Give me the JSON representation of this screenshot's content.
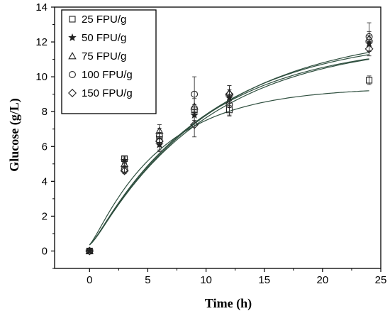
{
  "chart_data": {
    "type": "scatter",
    "title": "",
    "xlabel": "Time (h)",
    "ylabel": "Glucose (g/L)",
    "xlim": [
      -3,
      25
    ],
    "ylim": [
      -1,
      14
    ],
    "x_ticks": [
      0,
      5,
      10,
      15,
      20,
      25
    ],
    "y_ticks": [
      0,
      2,
      4,
      6,
      8,
      10,
      12,
      14
    ],
    "grid": false,
    "legend_position": "top-left",
    "fit_curves": true,
    "x": [
      0,
      3,
      6,
      9,
      12,
      24
    ],
    "series": [
      {
        "name": "25 FPU/g",
        "marker": "square",
        "values": [
          0,
          5.3,
          6.4,
          8.1,
          8.1,
          9.8
        ],
        "error": [
          0,
          0.15,
          0.4,
          0.3,
          0.35,
          0.25
        ],
        "fit_plateau": 9.4,
        "fit_rate": 0.16
      },
      {
        "name": "50 FPU/g",
        "marker": "star",
        "values": [
          0,
          5.2,
          6.1,
          7.8,
          8.8,
          11.9
        ],
        "error": [
          0,
          0.2,
          0.4,
          0.3,
          0.45,
          0.45
        ],
        "fit_plateau": 12.0,
        "fit_rate": 0.105
      },
      {
        "name": "75 FPU/g",
        "marker": "triangle",
        "values": [
          0,
          5.0,
          6.9,
          8.3,
          9.1,
          12.2
        ],
        "error": [
          0,
          0.2,
          0.35,
          0.45,
          0.4,
          0.4
        ],
        "fit_plateau": 12.4,
        "fit_rate": 0.1
      },
      {
        "name": "100 FPU/g",
        "marker": "circle",
        "values": [
          0,
          4.7,
          6.6,
          9.0,
          8.4,
          12.3
        ],
        "error": [
          0,
          0.2,
          0.45,
          1.0,
          0.6,
          0.8
        ],
        "fit_plateau": 12.7,
        "fit_rate": 0.095
      },
      {
        "name": "150 FPU/g",
        "marker": "diamond",
        "values": [
          0,
          4.6,
          6.3,
          7.25,
          9.0,
          11.6
        ],
        "error": [
          0,
          0.15,
          0.5,
          0.7,
          0.5,
          0.4
        ],
        "fit_plateau": 12.1,
        "fit_rate": 0.1
      }
    ],
    "colors": {
      "marker": "#222222",
      "fit_line": "#2f4f3f",
      "error_bar": "#333333",
      "axis": "#000000"
    }
  }
}
